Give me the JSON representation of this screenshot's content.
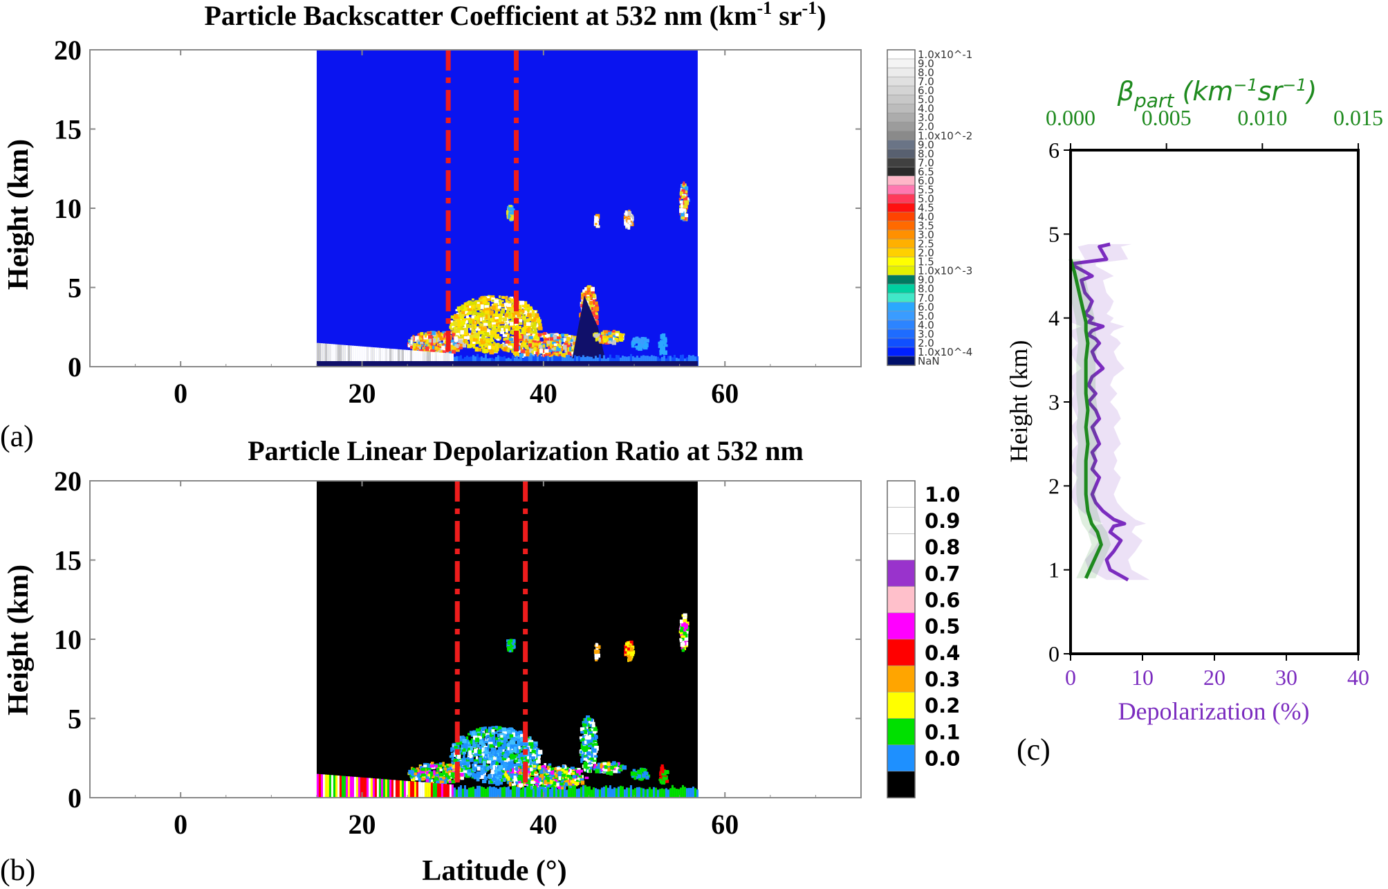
{
  "panels": {
    "a": {
      "label": "(a)",
      "chart_data": {
        "type": "heatmap",
        "title": "Particle Backscatter Coefficient at 532 nm (km -1 sr -1)",
        "title_parts": [
          "Particle Backscatter Coefficient at 532 nm (km",
          "-1",
          " sr",
          "-1",
          ")"
        ],
        "ylabel": "Height (km)",
        "xlabel": "",
        "xlim": [
          -10,
          75
        ],
        "ylim": [
          0,
          20
        ],
        "xticks": [
          0,
          20,
          40,
          60
        ],
        "yticks": [
          0,
          5,
          10,
          15,
          20
        ],
        "data_extent_x": [
          15,
          57
        ],
        "background_color": "#0a14f0",
        "feature_color": "#e8e020",
        "reference_lines_x": [
          29.5,
          37
        ],
        "colorbar": {
          "labels": [
            "1.0x10^-1",
            "9.0",
            "8.0",
            "7.0",
            "6.0",
            "5.0",
            "4.0",
            "3.0",
            "2.0",
            "1.0x10^-2",
            "9.0",
            "8.0",
            "7.0",
            "6.5",
            "6.0",
            "5.5",
            "5.0",
            "4.5",
            "4.0",
            "3.5",
            "3.0",
            "2.5",
            "2.0",
            "1.5",
            "1.0x10^-3",
            "9.0",
            "8.0",
            "7.0",
            "6.0",
            "5.0",
            "4.0",
            "3.0",
            "2.0",
            "1.0x10^-4",
            "NaN"
          ],
          "colors": [
            "#ffffff",
            "#f4f4f4",
            "#ececec",
            "#e0e0e0",
            "#d4d4d4",
            "#c8c8c8",
            "#bcbcbc",
            "#acacac",
            "#9c9c9c",
            "#8a8a8a",
            "#6a7486",
            "#586070",
            "#404040",
            "#2a2a2a",
            "#ffb6c8",
            "#ff78b0",
            "#ff3a5a",
            "#ff1010",
            "#ff4400",
            "#ff6a00",
            "#ff9000",
            "#ffb000",
            "#ffd000",
            "#ffff00",
            "#e4f000",
            "#007a60",
            "#00d0a0",
            "#40e8c8",
            "#2aa8ff",
            "#3a9cff",
            "#2c84ff",
            "#1e6cff",
            "#1050ff",
            "#0020ff",
            "#00106a"
          ]
        }
      }
    },
    "b": {
      "label": "(b)",
      "chart_data": {
        "type": "heatmap",
        "title": "Particle Linear Depolarization Ratio at 532 nm",
        "ylabel": "Height (km)",
        "xlabel": "Latitude (°)",
        "xlim": [
          -10,
          75
        ],
        "ylim": [
          0,
          20
        ],
        "xticks": [
          0,
          20,
          40,
          60
        ],
        "yticks": [
          0,
          5,
          10,
          15,
          20
        ],
        "data_extent_x": [
          15,
          57
        ],
        "background_color": "#000000",
        "feature_color": "#1e90ff",
        "reference_lines_x": [
          30.5,
          38
        ],
        "colorbar": {
          "labels": [
            "1.0",
            "0.9",
            "0.8",
            "0.7",
            "0.6",
            "0.5",
            "0.4",
            "0.3",
            "0.2",
            "0.1",
            "0.0"
          ],
          "colors": [
            "#ffffff",
            "#ffffff",
            "#ffffff",
            "#9933cc",
            "#ffc0cb",
            "#ff00ff",
            "#ff0000",
            "#ffa500",
            "#ffff00",
            "#00e000",
            "#1e90ff",
            "#000000"
          ]
        }
      }
    },
    "c": {
      "label": "(c)",
      "chart_data": {
        "type": "line",
        "ylabel": "Height (km)",
        "xlabel_bottom": "Depolarization (%)",
        "xlabel_top": "βpart (km⁻¹sr⁻¹)",
        "ylim": [
          0,
          6
        ],
        "yticks": [
          0,
          1,
          2,
          3,
          4,
          5,
          6
        ],
        "xlim_bottom": [
          0,
          40
        ],
        "xticks_bottom": [
          0,
          10,
          20,
          30,
          40
        ],
        "xlim_top": [
          0,
          0.015
        ],
        "xticks_top": [
          "0.000",
          "0.005",
          "0.010",
          "0.015"
        ],
        "colors": {
          "depolarization": "#7b2cbf",
          "beta": "#1e8a1e"
        },
        "series": [
          {
            "name": "",
            "axis": "bottom",
            "x": [
              8,
              5.5,
              5,
              6,
              7,
              5.5,
              6,
              7.5,
              6,
              4.5,
              3.5,
              3,
              3.5,
              4,
              3,
              3.5,
              3,
              4,
              3.5,
              3,
              4,
              3.5,
              2.5,
              3.5,
              2.5,
              3,
              4.5,
              3.5,
              3,
              4,
              3.5,
              2.5,
              3,
              4.5,
              2.5,
              3,
              2,
              2.5,
              3,
              2,
              1.5,
              3,
              2,
              0.5,
              0.5,
              5,
              4,
              5.5
            ],
            "y": [
              0.88,
              1.0,
              1.12,
              1.22,
              1.35,
              1.45,
              1.52,
              1.55,
              1.6,
              1.7,
              1.8,
              1.9,
              2.0,
              2.1,
              2.2,
              2.3,
              2.4,
              2.5,
              2.6,
              2.7,
              2.8,
              2.9,
              3.0,
              3.1,
              3.2,
              3.3,
              3.4,
              3.5,
              3.6,
              3.7,
              3.75,
              3.8,
              3.85,
              3.9,
              3.95,
              4.0,
              4.05,
              4.1,
              4.2,
              4.3,
              4.45,
              4.5,
              4.55,
              4.62,
              4.65,
              4.7,
              4.85,
              4.88
            ]
          },
          {
            "name": "",
            "axis": "top",
            "x": [
              0.0008,
              0.001,
              0.0013,
              0.0016,
              0.0014,
              0.0011,
              0.0009,
              0.0008,
              0.0008,
              0.0008,
              0.0009,
              0.0008,
              0.0009,
              0.0008,
              0.0008,
              0.0008,
              0.0009,
              0.0008,
              0.0008,
              0.0007,
              0.0006,
              0.0005,
              0.0004,
              0.0003,
              0.0002,
              0.0001,
              0.0
            ],
            "y": [
              0.9,
              1.0,
              1.15,
              1.3,
              1.45,
              1.55,
              1.7,
              1.9,
              2.1,
              2.3,
              2.5,
              2.7,
              2.9,
              3.1,
              3.3,
              3.5,
              3.7,
              3.85,
              3.95,
              4.05,
              4.15,
              4.25,
              4.35,
              4.45,
              4.55,
              4.62,
              4.7
            ]
          }
        ]
      }
    }
  }
}
